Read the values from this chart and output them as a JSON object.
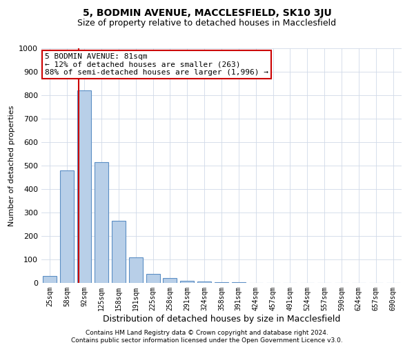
{
  "title1": "5, BODMIN AVENUE, MACCLESFIELD, SK10 3JU",
  "title2": "Size of property relative to detached houses in Macclesfield",
  "xlabel": "Distribution of detached houses by size in Macclesfield",
  "ylabel": "Number of detached properties",
  "footnote": "Contains HM Land Registry data © Crown copyright and database right 2024.\nContains public sector information licensed under the Open Government Licence v3.0.",
  "bar_labels": [
    "25sqm",
    "58sqm",
    "92sqm",
    "125sqm",
    "158sqm",
    "191sqm",
    "225sqm",
    "258sqm",
    "291sqm",
    "324sqm",
    "358sqm",
    "391sqm",
    "424sqm",
    "457sqm",
    "491sqm",
    "524sqm",
    "557sqm",
    "590sqm",
    "624sqm",
    "657sqm",
    "690sqm"
  ],
  "bar_values": [
    28,
    480,
    820,
    515,
    265,
    110,
    38,
    20,
    10,
    5,
    3,
    2,
    1,
    1,
    0,
    0,
    0,
    0,
    0,
    0,
    0
  ],
  "bar_color": "#b8cfe8",
  "bar_edge_color": "#5b8ec4",
  "grid_color": "#d0d9e8",
  "annotation_text": "5 BODMIN AVENUE: 81sqm\n← 12% of detached houses are smaller (263)\n88% of semi-detached houses are larger (1,996) →",
  "annotation_box_color": "#cc0000",
  "vline_color": "#cc0000",
  "vline_pos": 1.68,
  "ylim": [
    0,
    1000
  ],
  "yticks": [
    0,
    100,
    200,
    300,
    400,
    500,
    600,
    700,
    800,
    900,
    1000
  ],
  "background_color": "#ffffff",
  "title1_fontsize": 10,
  "title2_fontsize": 9,
  "xlabel_fontsize": 9,
  "ylabel_fontsize": 8,
  "footnote_fontsize": 6.5,
  "annotation_fontsize": 8,
  "ytick_fontsize": 8,
  "xtick_fontsize": 7
}
